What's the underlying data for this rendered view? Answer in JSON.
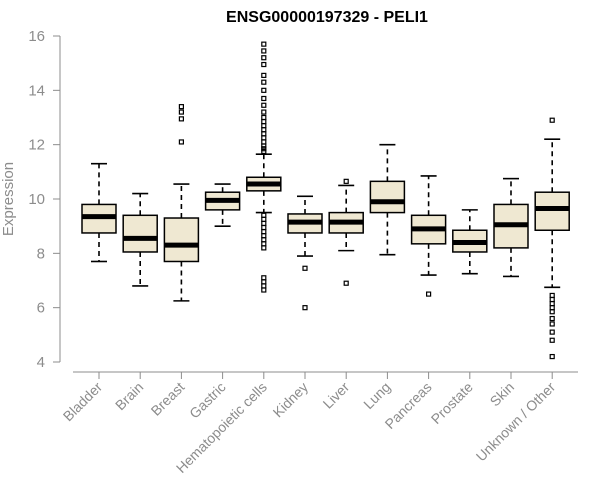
{
  "chart_data": {
    "type": "boxplot",
    "title": "ENSG00000197329 - PELI1",
    "xlabel": "",
    "ylabel": "Expression",
    "ylim": [
      4,
      16
    ],
    "yticks": [
      4,
      6,
      8,
      10,
      12,
      14,
      16
    ],
    "categories": [
      "Bladder",
      "Brain",
      "Breast",
      "Gastric",
      "Hematopoietic cells",
      "Kidney",
      "Liver",
      "Lung",
      "Pancreas",
      "Prostate",
      "Skin",
      "Unknown / Other"
    ],
    "boxes": [
      {
        "name": "Bladder",
        "whisker_low": 7.7,
        "q1": 8.75,
        "median": 9.35,
        "q3": 9.8,
        "whisker_high": 11.3,
        "outliers": []
      },
      {
        "name": "Brain",
        "whisker_low": 6.8,
        "q1": 8.05,
        "median": 8.55,
        "q3": 9.4,
        "whisker_high": 10.2,
        "outliers": []
      },
      {
        "name": "Breast",
        "whisker_low": 6.25,
        "q1": 7.7,
        "median": 8.3,
        "q3": 9.3,
        "whisker_high": 10.55,
        "outliers": [
          12.1,
          12.95,
          13.2,
          13.4
        ]
      },
      {
        "name": "Gastric",
        "whisker_low": 9.0,
        "q1": 9.6,
        "median": 9.95,
        "q3": 10.25,
        "whisker_high": 10.55,
        "outliers": []
      },
      {
        "name": "Hematopoietic cells",
        "whisker_low": 9.5,
        "q1": 10.3,
        "median": 10.55,
        "q3": 10.8,
        "whisker_high": 11.65,
        "outliers": [
          6.65,
          6.8,
          6.95,
          7.1,
          8.2,
          8.35,
          8.5,
          8.65,
          8.8,
          8.95,
          9.1,
          9.25,
          9.4,
          11.75,
          11.85,
          11.95,
          12.1,
          12.25,
          12.4,
          12.55,
          12.7,
          12.85,
          13.0,
          13.2,
          13.45,
          13.7,
          14.0,
          14.3,
          14.55,
          14.95,
          15.2,
          15.45,
          15.7
        ]
      },
      {
        "name": "Kidney",
        "whisker_low": 7.9,
        "q1": 8.75,
        "median": 9.15,
        "q3": 9.45,
        "whisker_high": 10.1,
        "outliers": [
          7.45,
          6.0
        ]
      },
      {
        "name": "Liver",
        "whisker_low": 8.1,
        "q1": 8.75,
        "median": 9.15,
        "q3": 9.5,
        "whisker_high": 10.5,
        "outliers": [
          10.65,
          6.9
        ]
      },
      {
        "name": "Lung",
        "whisker_low": 7.95,
        "q1": 9.5,
        "median": 9.9,
        "q3": 10.65,
        "whisker_high": 12.0,
        "outliers": []
      },
      {
        "name": "Pancreas",
        "whisker_low": 7.2,
        "q1": 8.35,
        "median": 8.9,
        "q3": 9.4,
        "whisker_high": 10.85,
        "outliers": [
          6.5
        ]
      },
      {
        "name": "Prostate",
        "whisker_low": 7.25,
        "q1": 8.05,
        "median": 8.4,
        "q3": 8.85,
        "whisker_high": 9.6,
        "outliers": []
      },
      {
        "name": "Skin",
        "whisker_low": 7.15,
        "q1": 8.2,
        "median": 9.05,
        "q3": 9.8,
        "whisker_high": 10.75,
        "outliers": []
      },
      {
        "name": "Unknown / Other",
        "whisker_low": 6.75,
        "q1": 8.85,
        "median": 9.65,
        "q3": 10.25,
        "whisker_high": 12.2,
        "outliers": [
          12.9,
          6.45,
          6.3,
          6.15,
          6.0,
          5.85,
          5.6,
          5.4,
          5.1,
          4.8,
          4.2
        ]
      }
    ],
    "box_fill": "#efe8d2",
    "grid": false
  }
}
